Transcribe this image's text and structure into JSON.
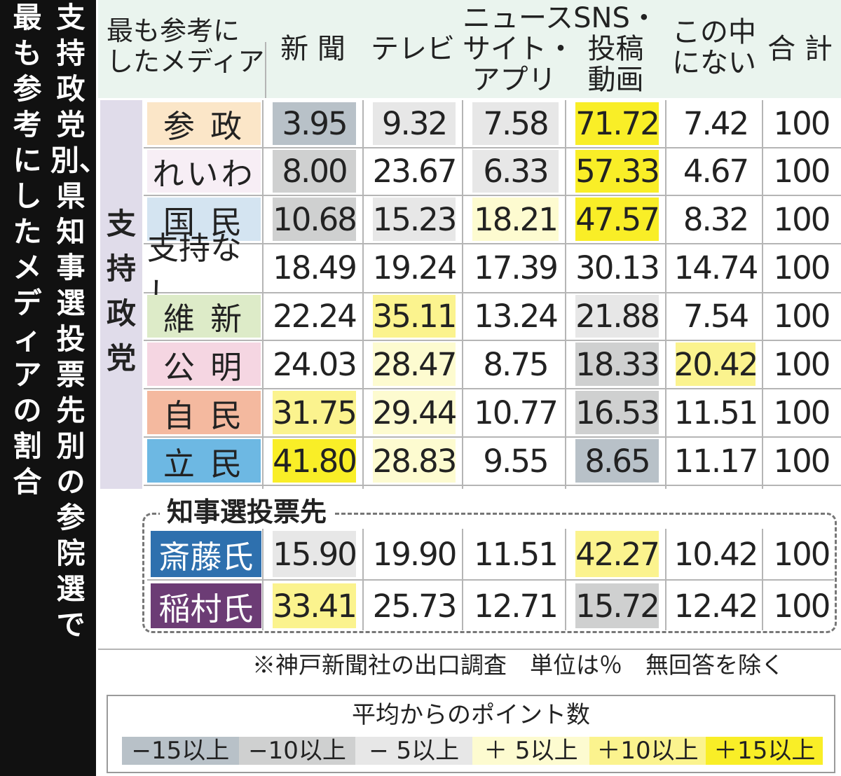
{
  "title": {
    "line1": "支持政党別、県知事選投票先別の参院選で",
    "line2": "最も参考にしたメディアの割合"
  },
  "header": {
    "corner_line1": "最も参考に",
    "corner_line2": "したメディア",
    "columns": [
      [
        "新 聞"
      ],
      [
        "テレビ"
      ],
      [
        "ニュース",
        "サイト・",
        "アプリ"
      ],
      [
        "SNS・",
        "投稿",
        "動画"
      ],
      [
        "この中",
        "にない"
      ],
      [
        "合 計"
      ]
    ]
  },
  "group_label": "支持政党",
  "section_label": "知事選投票先",
  "colors": {
    "blue_dark": "#b8c1c8",
    "gray_mid": "#cfd0d0",
    "gray_light": "#e7e7e7",
    "yellow_light": "#fdfbd0",
    "yellow_mid": "#fbf38e",
    "yellow_strong": "#f9ee27",
    "header_bg": "#eaf4ee",
    "party_group_bg": "#e0dcea",
    "label_sansei": "#fbe6c8",
    "label_reiwa": "#f7eef5",
    "label_kokumin": "#d4e4f1",
    "label_ishin": "#ddebc8",
    "label_komei": "#f5d6e2",
    "label_jimin": "#f4b99f",
    "label_rikken": "#6db8e3",
    "label_saito": "#2e70ae",
    "label_inamura": "#6c3c75"
  },
  "chart_data": {
    "type": "table",
    "title": "支持政党別、県知事選投票先別の参院選で最も参考にしたメディアの割合",
    "columns": [
      "新聞",
      "テレビ",
      "ニュースサイト・アプリ",
      "SNS・投稿動画",
      "この中にない",
      "合計"
    ],
    "rows": [
      {
        "label": "参 政",
        "group": "支持政党",
        "label_color": "label_sansei",
        "values": [
          "3.95",
          "9.32",
          "7.58",
          "71.72",
          "7.42",
          "100"
        ],
        "shades": [
          "blue_dark",
          "gray_light",
          "gray_light",
          "yellow_strong",
          null,
          null
        ]
      },
      {
        "label": "れいわ",
        "group": "支持政党",
        "label_color": "label_reiwa",
        "values": [
          "8.00",
          "23.67",
          "6.33",
          "57.33",
          "4.67",
          "100"
        ],
        "shades": [
          "gray_mid",
          null,
          "gray_light",
          "yellow_strong",
          null,
          null
        ]
      },
      {
        "label": "国 民",
        "group": "支持政党",
        "label_color": "label_kokumin",
        "values": [
          "10.68",
          "15.23",
          "18.21",
          "47.57",
          "8.32",
          "100"
        ],
        "shades": [
          "gray_mid",
          "gray_light",
          "yellow_light",
          "yellow_strong",
          null,
          null
        ]
      },
      {
        "label": "支持なし",
        "group": "支持政党",
        "label_color": null,
        "values": [
          "18.49",
          "19.24",
          "17.39",
          "30.13",
          "14.74",
          "100"
        ],
        "shades": [
          null,
          null,
          null,
          null,
          null,
          null
        ]
      },
      {
        "label": "維 新",
        "group": "支持政党",
        "label_color": "label_ishin",
        "values": [
          "22.24",
          "35.11",
          "13.24",
          "21.88",
          "7.54",
          "100"
        ],
        "shades": [
          null,
          "yellow_mid",
          null,
          "gray_light",
          null,
          null
        ]
      },
      {
        "label": "公 明",
        "group": "支持政党",
        "label_color": "label_komei",
        "values": [
          "24.03",
          "28.47",
          "8.75",
          "18.33",
          "20.42",
          "100"
        ],
        "shades": [
          null,
          "yellow_light",
          null,
          "gray_mid",
          "yellow_mid",
          null
        ]
      },
      {
        "label": "自 民",
        "group": "支持政党",
        "label_color": "label_jimin",
        "values": [
          "31.75",
          "29.44",
          "10.77",
          "16.53",
          "11.51",
          "100"
        ],
        "shades": [
          "yellow_mid",
          "yellow_light",
          null,
          "gray_mid",
          null,
          null
        ]
      },
      {
        "label": "立 民",
        "group": "支持政党",
        "label_color": "label_rikken",
        "values": [
          "41.80",
          "28.83",
          "9.55",
          "8.65",
          "11.17",
          "100"
        ],
        "shades": [
          "yellow_strong",
          "yellow_light",
          null,
          "blue_dark",
          null,
          null
        ]
      },
      {
        "label": "斎藤氏",
        "group": "知事選投票先",
        "label_color": "label_saito",
        "values": [
          "15.90",
          "19.90",
          "11.51",
          "42.27",
          "10.42",
          "100"
        ],
        "shades": [
          "gray_light",
          null,
          null,
          "yellow_mid",
          null,
          null
        ]
      },
      {
        "label": "稲村氏",
        "group": "知事選投票先",
        "label_color": "label_inamura",
        "values": [
          "33.41",
          "25.73",
          "12.71",
          "15.72",
          "12.42",
          "100"
        ],
        "shades": [
          "yellow_mid",
          null,
          null,
          "gray_mid",
          null,
          null
        ]
      }
    ]
  },
  "footnote": "※神戸新聞社の出口調査　単位は％　無回答を除く",
  "legend": {
    "title": "平均からのポイント数",
    "items": [
      {
        "label": "−15以上",
        "color": "blue_dark"
      },
      {
        "label": "−10以上",
        "color": "gray_mid"
      },
      {
        "label": "− 5以上",
        "color": "gray_light"
      },
      {
        "label": "＋ 5以上",
        "color": "yellow_light"
      },
      {
        "label": "＋10以上",
        "color": "yellow_mid"
      },
      {
        "label": "＋15以上",
        "color": "yellow_strong"
      }
    ]
  }
}
